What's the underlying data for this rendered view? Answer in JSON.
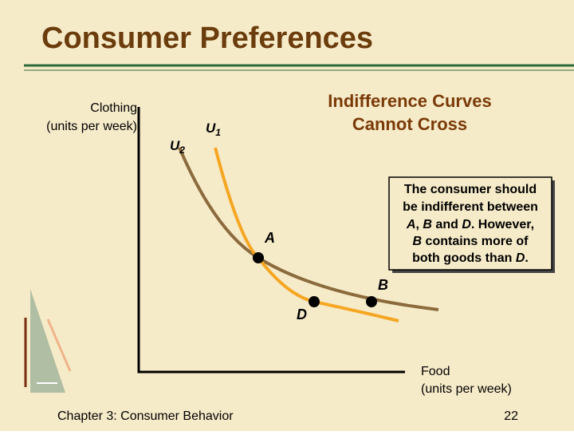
{
  "header": {
    "title": "Consumer Preferences"
  },
  "diagram": {
    "y_axis_label": [
      "Clothing",
      "(units per week)"
    ],
    "x_axis_label": [
      "Food",
      "(units per week)"
    ],
    "curves": [
      {
        "letter": "U",
        "sub": "2"
      },
      {
        "letter": "U",
        "sub": "1"
      }
    ],
    "points": [
      "A",
      "B",
      "D"
    ],
    "heading": [
      "Indifference Curves",
      "Cannot Cross"
    ],
    "note": [
      "The consumer should",
      "be indifferent between",
      [
        "A",
        ", ",
        "B",
        " and ",
        "D",
        ".  However,"
      ],
      [
        "B",
        " contains more of"
      ],
      [
        "both goods than ",
        "D",
        "."
      ]
    ]
  },
  "footer": {
    "chapter": "Chapter 3: Consumer Behavior",
    "page": "22"
  }
}
